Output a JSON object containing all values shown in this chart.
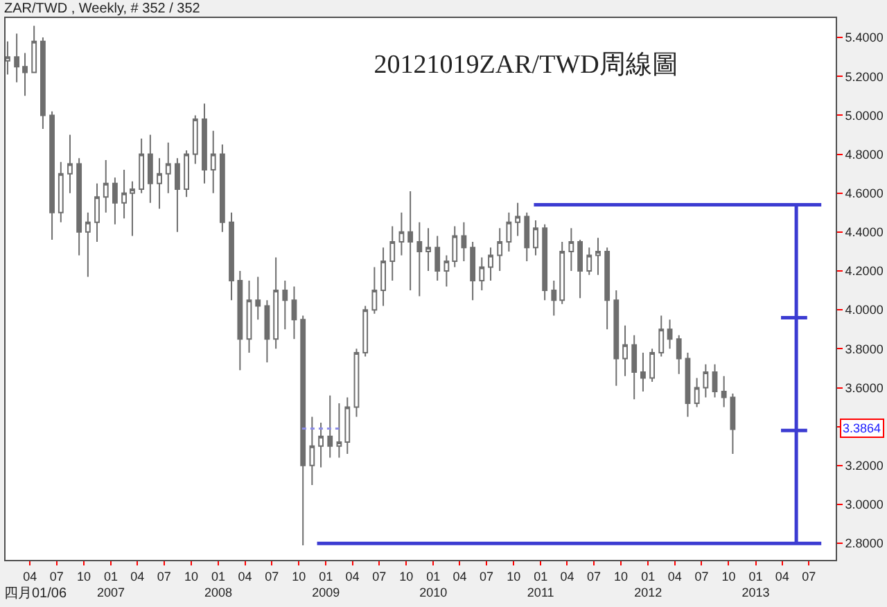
{
  "chart_data": {
    "type": "candlestick",
    "title": "20121019ZAR/TWD周線圖",
    "subtitle": "ZAR/TWD , Weekly, # 352 / 352",
    "x": [
      "2006-01-15",
      "2006-02-15",
      "2006-03-15",
      "2006-04-15",
      "2006-05-15",
      "2006-06-15",
      "2006-07-15",
      "2006-08-15",
      "2006-09-15",
      "2006-10-15",
      "2006-11-15",
      "2006-12-15",
      "2007-01-15",
      "2007-02-15",
      "2007-03-15",
      "2007-04-15",
      "2007-05-15",
      "2007-06-15",
      "2007-07-15",
      "2007-08-15",
      "2007-09-15",
      "2007-10-15",
      "2007-11-15",
      "2007-12-15",
      "2008-01-15",
      "2008-02-15",
      "2008-03-15",
      "2008-04-15",
      "2008-05-15",
      "2008-06-15",
      "2008-07-15",
      "2008-08-15",
      "2008-09-15",
      "2008-10-15",
      "2008-11-15",
      "2008-12-15",
      "2009-01-15",
      "2009-02-15",
      "2009-03-15",
      "2009-04-15",
      "2009-05-15",
      "2009-06-15",
      "2009-07-15",
      "2009-08-15",
      "2009-09-15",
      "2009-10-15",
      "2009-11-15",
      "2009-12-15",
      "2010-01-15",
      "2010-02-15",
      "2010-03-15",
      "2010-04-15",
      "2010-05-15",
      "2010-06-15",
      "2010-07-15",
      "2010-08-15",
      "2010-09-15",
      "2010-10-15",
      "2010-11-15",
      "2010-12-15",
      "2011-01-15",
      "2011-02-15",
      "2011-03-15",
      "2011-04-15",
      "2011-05-15",
      "2011-06-15",
      "2011-07-15",
      "2011-08-15",
      "2011-09-15",
      "2011-10-15",
      "2011-11-15",
      "2011-12-15",
      "2012-01-15",
      "2012-02-15",
      "2012-03-15",
      "2012-04-15",
      "2012-05-15",
      "2012-06-15",
      "2012-07-15",
      "2012-08-15",
      "2012-09-15",
      "2012-10-15"
    ],
    "ohlc": [
      [
        5.28,
        5.38,
        5.21,
        5.3
      ],
      [
        5.3,
        5.42,
        5.17,
        5.25
      ],
      [
        5.25,
        5.32,
        5.1,
        5.22
      ],
      [
        5.22,
        5.46,
        5.22,
        5.38
      ],
      [
        5.38,
        5.4,
        4.93,
        5.0
      ],
      [
        5.0,
        5.02,
        4.36,
        4.5
      ],
      [
        4.5,
        4.76,
        4.45,
        4.7
      ],
      [
        4.7,
        4.9,
        4.6,
        4.75
      ],
      [
        4.75,
        4.78,
        4.28,
        4.4
      ],
      [
        4.4,
        4.5,
        4.17,
        4.45
      ],
      [
        4.45,
        4.65,
        4.35,
        4.58
      ],
      [
        4.58,
        4.77,
        4.5,
        4.65
      ],
      [
        4.65,
        4.68,
        4.44,
        4.55
      ],
      [
        4.55,
        4.72,
        4.47,
        4.6
      ],
      [
        4.6,
        4.66,
        4.38,
        4.62
      ],
      [
        4.62,
        4.88,
        4.6,
        4.8
      ],
      [
        4.8,
        4.9,
        4.55,
        4.65
      ],
      [
        4.65,
        4.78,
        4.52,
        4.7
      ],
      [
        4.7,
        4.86,
        4.6,
        4.75
      ],
      [
        4.75,
        4.78,
        4.4,
        4.62
      ],
      [
        4.62,
        4.82,
        4.58,
        4.8
      ],
      [
        4.8,
        5.0,
        4.75,
        4.98
      ],
      [
        4.98,
        5.06,
        4.65,
        4.72
      ],
      [
        4.72,
        4.92,
        4.6,
        4.8
      ],
      [
        4.8,
        4.85,
        4.4,
        4.45
      ],
      [
        4.45,
        4.5,
        4.05,
        4.15
      ],
      [
        4.15,
        4.2,
        3.69,
        3.85
      ],
      [
        3.85,
        4.15,
        3.78,
        4.05
      ],
      [
        4.05,
        4.17,
        3.95,
        4.02
      ],
      [
        4.02,
        4.05,
        3.73,
        3.85
      ],
      [
        3.85,
        4.27,
        3.8,
        4.1
      ],
      [
        4.1,
        4.15,
        3.9,
        4.05
      ],
      [
        4.05,
        4.12,
        3.85,
        3.95
      ],
      [
        3.95,
        3.97,
        2.79,
        3.2
      ],
      [
        3.2,
        3.45,
        3.1,
        3.3
      ],
      [
        3.3,
        3.42,
        3.19,
        3.35
      ],
      [
        3.35,
        3.56,
        3.24,
        3.3
      ],
      [
        3.3,
        3.52,
        3.24,
        3.32
      ],
      [
        3.32,
        3.55,
        3.26,
        3.5
      ],
      [
        3.5,
        3.8,
        3.45,
        3.78
      ],
      [
        3.78,
        4.02,
        3.76,
        4.0
      ],
      [
        4.0,
        4.22,
        3.98,
        4.1
      ],
      [
        4.1,
        4.32,
        4.02,
        4.25
      ],
      [
        4.25,
        4.43,
        4.15,
        4.35
      ],
      [
        4.35,
        4.5,
        4.28,
        4.4
      ],
      [
        4.4,
        4.61,
        4.1,
        4.35
      ],
      [
        4.35,
        4.45,
        4.07,
        4.3
      ],
      [
        4.3,
        4.42,
        4.2,
        4.32
      ],
      [
        4.32,
        4.38,
        4.15,
        4.2
      ],
      [
        4.2,
        4.28,
        4.12,
        4.25
      ],
      [
        4.25,
        4.43,
        4.22,
        4.38
      ],
      [
        4.38,
        4.45,
        4.25,
        4.32
      ],
      [
        4.32,
        4.35,
        4.05,
        4.15
      ],
      [
        4.15,
        4.27,
        4.1,
        4.22
      ],
      [
        4.22,
        4.32,
        4.15,
        4.28
      ],
      [
        4.28,
        4.42,
        4.2,
        4.35
      ],
      [
        4.35,
        4.5,
        4.3,
        4.45
      ],
      [
        4.45,
        4.55,
        4.38,
        4.48
      ],
      [
        4.48,
        4.5,
        4.25,
        4.32
      ],
      [
        4.32,
        4.46,
        4.28,
        4.42
      ],
      [
        4.42,
        4.44,
        4.05,
        4.1
      ],
      [
        4.1,
        4.15,
        3.97,
        4.05
      ],
      [
        4.05,
        4.35,
        4.03,
        4.3
      ],
      [
        4.3,
        4.42,
        4.2,
        4.35
      ],
      [
        4.35,
        4.36,
        4.06,
        4.2
      ],
      [
        4.2,
        4.32,
        4.18,
        4.28
      ],
      [
        4.28,
        4.37,
        4.18,
        4.3
      ],
      [
        4.3,
        4.32,
        3.9,
        4.05
      ],
      [
        4.05,
        4.1,
        3.61,
        3.75
      ],
      [
        3.75,
        3.92,
        3.66,
        3.82
      ],
      [
        3.82,
        3.87,
        3.54,
        3.68
      ],
      [
        3.68,
        3.78,
        3.58,
        3.65
      ],
      [
        3.65,
        3.8,
        3.63,
        3.78
      ],
      [
        3.78,
        3.97,
        3.76,
        3.9
      ],
      [
        3.9,
        3.95,
        3.8,
        3.85
      ],
      [
        3.85,
        3.87,
        3.67,
        3.75
      ],
      [
        3.75,
        3.78,
        3.45,
        3.52
      ],
      [
        3.52,
        3.65,
        3.5,
        3.6
      ],
      [
        3.6,
        3.72,
        3.55,
        3.68
      ],
      [
        3.68,
        3.72,
        3.55,
        3.58
      ],
      [
        3.58,
        3.66,
        3.5,
        3.55
      ],
      [
        3.55,
        3.57,
        3.26,
        3.3864
      ]
    ],
    "color": "#6e6e6e",
    "series": [
      {
        "type": "line",
        "color": "#3c3cd2",
        "x": [
          "2010-12-09",
          "2013-08-12"
        ],
        "values": [
          4.54,
          4.54
        ]
      },
      {
        "type": "line",
        "color": "#3c3cd2",
        "x": [
          "2008-12-02",
          "2013-08-12"
        ],
        "values": [
          2.8,
          2.8
        ]
      },
      {
        "type": "line",
        "color": "#3c3cd2",
        "x": [
          "2013-05-19",
          "2013-05-19"
        ],
        "values": [
          2.8,
          4.54
        ]
      },
      {
        "type": "line",
        "color": "#3c3cd2",
        "x": [
          "2013-03-28",
          "2013-06-25"
        ],
        "values": [
          3.96,
          3.96
        ]
      },
      {
        "type": "line",
        "color": "#3c3cd2",
        "x": [
          "2013-03-28",
          "2013-06-25"
        ],
        "values": [
          3.38,
          3.38
        ]
      },
      {
        "type": "line",
        "color": "#8c8ce6",
        "line_style": "dotted",
        "x": [
          "2008-10-12",
          "2009-02-15"
        ],
        "values": [
          3.39,
          3.39
        ]
      }
    ],
    "xlim": [
      "2006-01-08",
      "2013-09-30"
    ],
    "xticks": [
      {
        "value": "2006-04",
        "label": "04"
      },
      {
        "value": "2006-07",
        "label": "07"
      },
      {
        "value": "2006-10",
        "label": "10"
      },
      {
        "value": "2007-01",
        "label": "01\n2007"
      },
      {
        "value": "2007-04",
        "label": "04"
      },
      {
        "value": "2007-07",
        "label": "07"
      },
      {
        "value": "2007-10",
        "label": "10"
      },
      {
        "value": "2008-01",
        "label": "01\n2008"
      },
      {
        "value": "2008-04",
        "label": "04"
      },
      {
        "value": "2008-07",
        "label": "07"
      },
      {
        "value": "2008-10",
        "label": "10"
      },
      {
        "value": "2009-01",
        "label": "01\n2009"
      },
      {
        "value": "2009-04",
        "label": "04"
      },
      {
        "value": "2009-07",
        "label": "07"
      },
      {
        "value": "2009-10",
        "label": "10"
      },
      {
        "value": "2010-01",
        "label": "01\n2010"
      },
      {
        "value": "2010-04",
        "label": "04"
      },
      {
        "value": "2010-07",
        "label": "07"
      },
      {
        "value": "2010-10",
        "label": "10"
      },
      {
        "value": "2011-01",
        "label": "01\n2011"
      },
      {
        "value": "2011-04",
        "label": "04"
      },
      {
        "value": "2011-07",
        "label": "07"
      },
      {
        "value": "2011-10",
        "label": "10"
      },
      {
        "value": "2012-01",
        "label": "01\n2012"
      },
      {
        "value": "2012-04",
        "label": "04"
      },
      {
        "value": "2012-07",
        "label": "07"
      },
      {
        "value": "2012-10",
        "label": "10"
      },
      {
        "value": "2013-01",
        "label": "01\n2013"
      },
      {
        "value": "2013-04",
        "label": "04"
      },
      {
        "value": "2013-07",
        "label": "07"
      }
    ],
    "ylim": [
      2.715,
      5.5
    ],
    "yticks": [
      {
        "value": 2.8,
        "label": "2.8000"
      },
      {
        "value": 3.0,
        "label": "3.0000"
      },
      {
        "value": 3.2,
        "label": "3.2000"
      },
      {
        "value": 3.4,
        "label": null
      },
      {
        "value": 3.6,
        "label": "3.6000"
      },
      {
        "value": 3.8,
        "label": "3.8000"
      },
      {
        "value": 4.0,
        "label": "4.0000"
      },
      {
        "value": 4.2,
        "label": "4.2000"
      },
      {
        "value": 4.4,
        "label": "4.4000"
      },
      {
        "value": 4.6,
        "label": "4.6000"
      },
      {
        "value": 4.8,
        "label": "4.8000"
      },
      {
        "value": 5.0,
        "label": "5.0000"
      },
      {
        "value": 5.2,
        "label": "5.2000"
      },
      {
        "value": 5.4,
        "label": "5.4000"
      }
    ],
    "annotations": [
      "3.3864",
      "四月01/06"
    ]
  }
}
